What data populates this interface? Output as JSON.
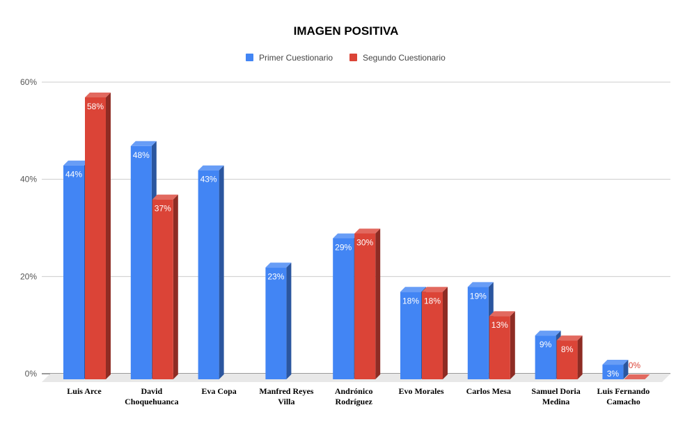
{
  "chart_data": {
    "type": "bar",
    "title": "IMAGEN POSITIVA",
    "categories": [
      [
        "Luis Arce"
      ],
      [
        "David",
        "Choquehuanca"
      ],
      [
        "Eva Copa"
      ],
      [
        "Manfred Reyes",
        "Villa"
      ],
      [
        "Andrónico",
        "Rodríguez"
      ],
      [
        "Evo Morales"
      ],
      [
        "Carlos Mesa"
      ],
      [
        "Samuel Doria",
        "Medina"
      ],
      [
        "Luis Fernando",
        "Camacho"
      ]
    ],
    "series": [
      {
        "name": "Primer Cuestionario",
        "color": "#4285f4",
        "values": [
          44,
          48,
          43,
          23,
          29,
          18,
          19,
          9,
          3
        ]
      },
      {
        "name": "Segundo Cuestionario",
        "color": "#db4437",
        "values": [
          58,
          37,
          null,
          null,
          30,
          18,
          13,
          8,
          0
        ]
      }
    ],
    "ylim": [
      0,
      60
    ],
    "yticks": [
      "0%",
      "20%",
      "40%",
      "60%"
    ],
    "value_suffix": "%",
    "grid": true,
    "legend_position": "top",
    "style": "3d"
  }
}
